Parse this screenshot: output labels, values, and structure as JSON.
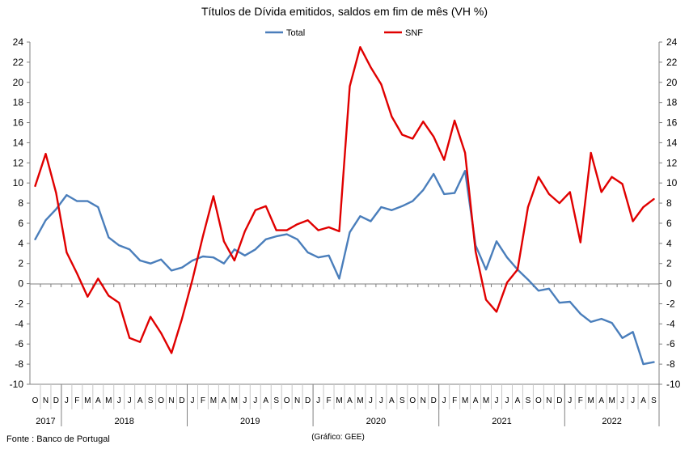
{
  "chart_data": {
    "type": "line",
    "title": "Títulos de Dívida emitidos, saldos em fim de mês  (VH %)",
    "source": "Fonte : Banco de Portugal",
    "credit": "(Gráfico: GEE)",
    "ylim": [
      -10,
      24
    ],
    "yticks": [
      -10,
      -8,
      -6,
      -4,
      -2,
      0,
      2,
      4,
      6,
      8,
      10,
      12,
      14,
      16,
      18,
      20,
      22,
      24
    ],
    "secondary_axis": true,
    "grid": false,
    "legend": "top-center",
    "month_labels": [
      "O",
      "N",
      "D",
      "J",
      "F",
      "M",
      "A",
      "M",
      "J",
      "J",
      "A",
      "S",
      "O",
      "N",
      "D",
      "J",
      "F",
      "M",
      "A",
      "M",
      "J",
      "J",
      "A",
      "S",
      "O",
      "N",
      "D",
      "J",
      "F",
      "M",
      "A",
      "M",
      "J",
      "J",
      "A",
      "S",
      "O",
      "N",
      "D",
      "J",
      "F",
      "M",
      "A",
      "M",
      "J",
      "J",
      "A",
      "S",
      "O",
      "N",
      "D",
      "J",
      "F",
      "M",
      "A",
      "M",
      "J",
      "J",
      "A",
      "S"
    ],
    "year_labels": [
      {
        "label": "2017",
        "months": 3
      },
      {
        "label": "2018",
        "months": 12
      },
      {
        "label": "2019",
        "months": 12
      },
      {
        "label": "2020",
        "months": 12
      },
      {
        "label": "2021",
        "months": 12
      },
      {
        "label": "2022",
        "months": 9
      }
    ],
    "x": [
      "2017-10",
      "2017-11",
      "2017-12",
      "2018-01",
      "2018-02",
      "2018-03",
      "2018-04",
      "2018-05",
      "2018-06",
      "2018-07",
      "2018-08",
      "2018-09",
      "2018-10",
      "2018-11",
      "2018-12",
      "2019-01",
      "2019-02",
      "2019-03",
      "2019-04",
      "2019-05",
      "2019-06",
      "2019-07",
      "2019-08",
      "2019-09",
      "2019-10",
      "2019-11",
      "2019-12",
      "2020-01",
      "2020-02",
      "2020-03",
      "2020-04",
      "2020-05",
      "2020-06",
      "2020-07",
      "2020-08",
      "2020-09",
      "2020-10",
      "2020-11",
      "2020-12",
      "2021-01",
      "2021-02",
      "2021-03",
      "2021-04",
      "2021-05",
      "2021-06",
      "2021-07",
      "2021-08",
      "2021-09",
      "2021-10",
      "2021-11",
      "2021-12",
      "2022-01",
      "2022-02",
      "2022-03",
      "2022-04",
      "2022-05",
      "2022-06",
      "2022-07",
      "2022-08",
      "2022-09"
    ],
    "series": [
      {
        "name": "Total",
        "color": "#4a7ebb",
        "values": [
          4.4,
          6.3,
          7.4,
          8.8,
          8.2,
          8.2,
          7.6,
          4.6,
          3.8,
          3.4,
          2.3,
          2.0,
          2.4,
          1.3,
          1.6,
          2.3,
          2.7,
          2.6,
          2.0,
          3.4,
          2.8,
          3.4,
          4.4,
          4.7,
          4.9,
          4.4,
          3.1,
          2.6,
          2.8,
          0.5,
          5.1,
          6.7,
          6.2,
          7.6,
          7.3,
          7.7,
          8.2,
          9.3,
          10.9,
          8.9,
          9.0,
          11.2,
          3.8,
          1.4,
          4.2,
          2.6,
          1.4,
          0.4,
          -0.7,
          -0.5,
          -1.9,
          -1.8,
          -3.0,
          -3.8,
          -3.5,
          -3.9,
          -5.4,
          -4.8,
          -8.0,
          -7.8
        ]
      },
      {
        "name": "SNF",
        "color": "#e00000",
        "values": [
          9.7,
          12.9,
          9.0,
          3.1,
          1.0,
          -1.3,
          0.5,
          -1.2,
          -1.9,
          -5.4,
          -5.8,
          -3.3,
          -4.9,
          -6.9,
          -3.5,
          0.4,
          4.7,
          8.7,
          4.2,
          2.3,
          5.2,
          7.3,
          7.7,
          5.3,
          5.3,
          5.9,
          6.3,
          5.3,
          5.6,
          5.2,
          19.6,
          23.5,
          21.5,
          19.8,
          16.6,
          14.8,
          14.4,
          16.1,
          14.6,
          12.3,
          16.2,
          13.0,
          3.2,
          -1.6,
          -2.8,
          0.1,
          1.4,
          7.6,
          10.6,
          8.9,
          8.0,
          9.1,
          4.1,
          13.0,
          9.1,
          10.6,
          9.9,
          6.2,
          7.6,
          8.4
        ]
      }
    ]
  }
}
